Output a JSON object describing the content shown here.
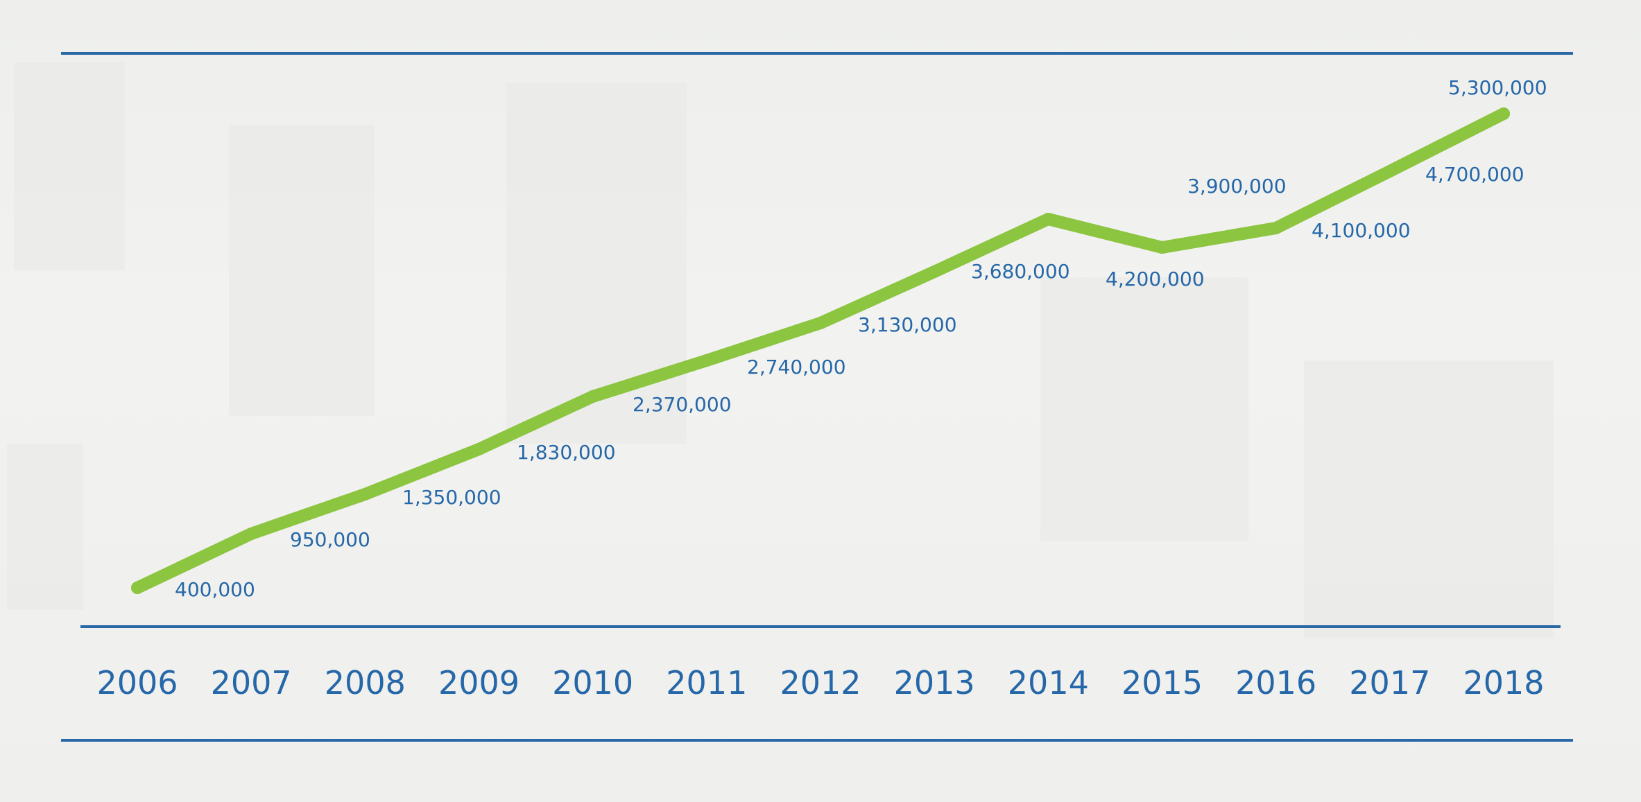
{
  "chart_data": {
    "type": "line",
    "title": "",
    "xlabel": "",
    "ylabel": "",
    "categories": [
      "2006",
      "2007",
      "2008",
      "2009",
      "2010",
      "2011",
      "2012",
      "2013",
      "2014",
      "2015",
      "2016",
      "2017",
      "2018"
    ],
    "series": [
      {
        "values": [
          400000,
          950000,
          1350000,
          1830000,
          2370000,
          2740000,
          3130000,
          3680000,
          4200000,
          3900000,
          4100000,
          4700000,
          5300000
        ]
      }
    ],
    "data_labels": [
      "400,000",
      "950,000",
      "1,350,000",
      "1,830,000",
      "2,370,000",
      "2,740,000",
      "3,130,000",
      "3,680,000",
      "4,200,000",
      "3,900,000",
      "4,100,000",
      "4,700,000",
      "5,300,000"
    ],
    "ylim": [
      400000,
      5300000
    ],
    "grid": false,
    "legend": "none",
    "colors": {
      "line": "#8cc540",
      "text": "#2567a8",
      "rules": "#2a69a6"
    }
  }
}
